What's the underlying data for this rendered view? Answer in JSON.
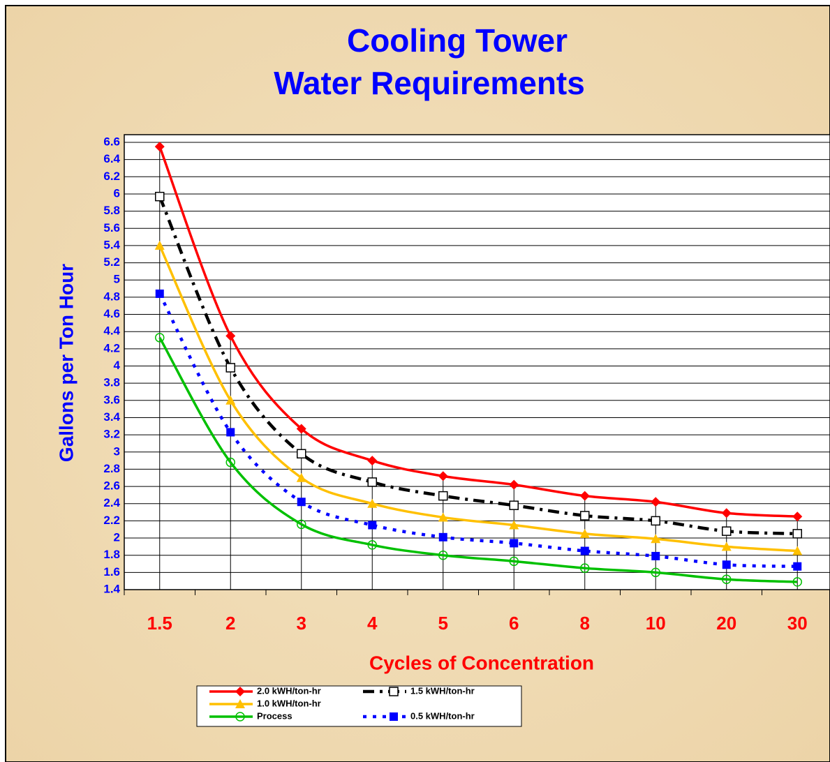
{
  "chart_data": {
    "type": "line",
    "title": [
      "Cooling Tower",
      "Water Requirements"
    ],
    "x_label": "Cycles of Concentration",
    "y_label": "Gallons per Ton Hour",
    "categories": [
      "1.5",
      "2",
      "3",
      "4",
      "5",
      "6",
      "8",
      "10",
      "20",
      "30"
    ],
    "series": [
      {
        "name": "2.0 kWH/ton-hr",
        "color": "#ff0000",
        "marker": "diamond",
        "dash": "solid",
        "values": [
          6.55,
          4.35,
          3.27,
          2.9,
          2.72,
          2.62,
          2.49,
          2.42,
          2.29,
          2.25
        ]
      },
      {
        "name": "1.5 kWH/ton-hr",
        "color": "#000000",
        "marker": "open-square",
        "dash": "dashdot",
        "values": [
          5.97,
          3.98,
          2.98,
          2.65,
          2.49,
          2.38,
          2.26,
          2.2,
          2.08,
          2.05
        ]
      },
      {
        "name": "1.0 kWH/ton-hr",
        "color": "#ffc000",
        "marker": "triangle",
        "dash": "solid",
        "values": [
          5.4,
          3.6,
          2.7,
          2.4,
          2.24,
          2.15,
          2.05,
          1.99,
          1.9,
          1.85
        ]
      },
      {
        "name": "0.5 kWH/ton-hr",
        "color": "#0000ff",
        "marker": "square",
        "dash": "dot",
        "values": [
          4.84,
          3.23,
          2.42,
          2.15,
          2.01,
          1.94,
          1.85,
          1.79,
          1.69,
          1.67
        ]
      },
      {
        "name": "Process",
        "color": "#00c000",
        "marker": "open-circle",
        "dash": "solid",
        "values": [
          4.33,
          2.88,
          2.16,
          1.92,
          1.8,
          1.73,
          1.65,
          1.6,
          1.52,
          1.49
        ]
      }
    ],
    "ylim": [
      1.4,
      6.6
    ],
    "yticks": [
      1.4,
      1.6,
      1.8,
      2,
      2.2,
      2.4,
      2.6,
      2.8,
      3,
      3.2,
      3.4,
      3.6,
      3.8,
      4,
      4.2,
      4.4,
      4.6,
      4.8,
      5,
      5.2,
      5.4,
      5.6,
      5.8,
      6,
      6.2,
      6.4,
      6.6
    ],
    "grid": true,
    "legend": "bottom"
  }
}
